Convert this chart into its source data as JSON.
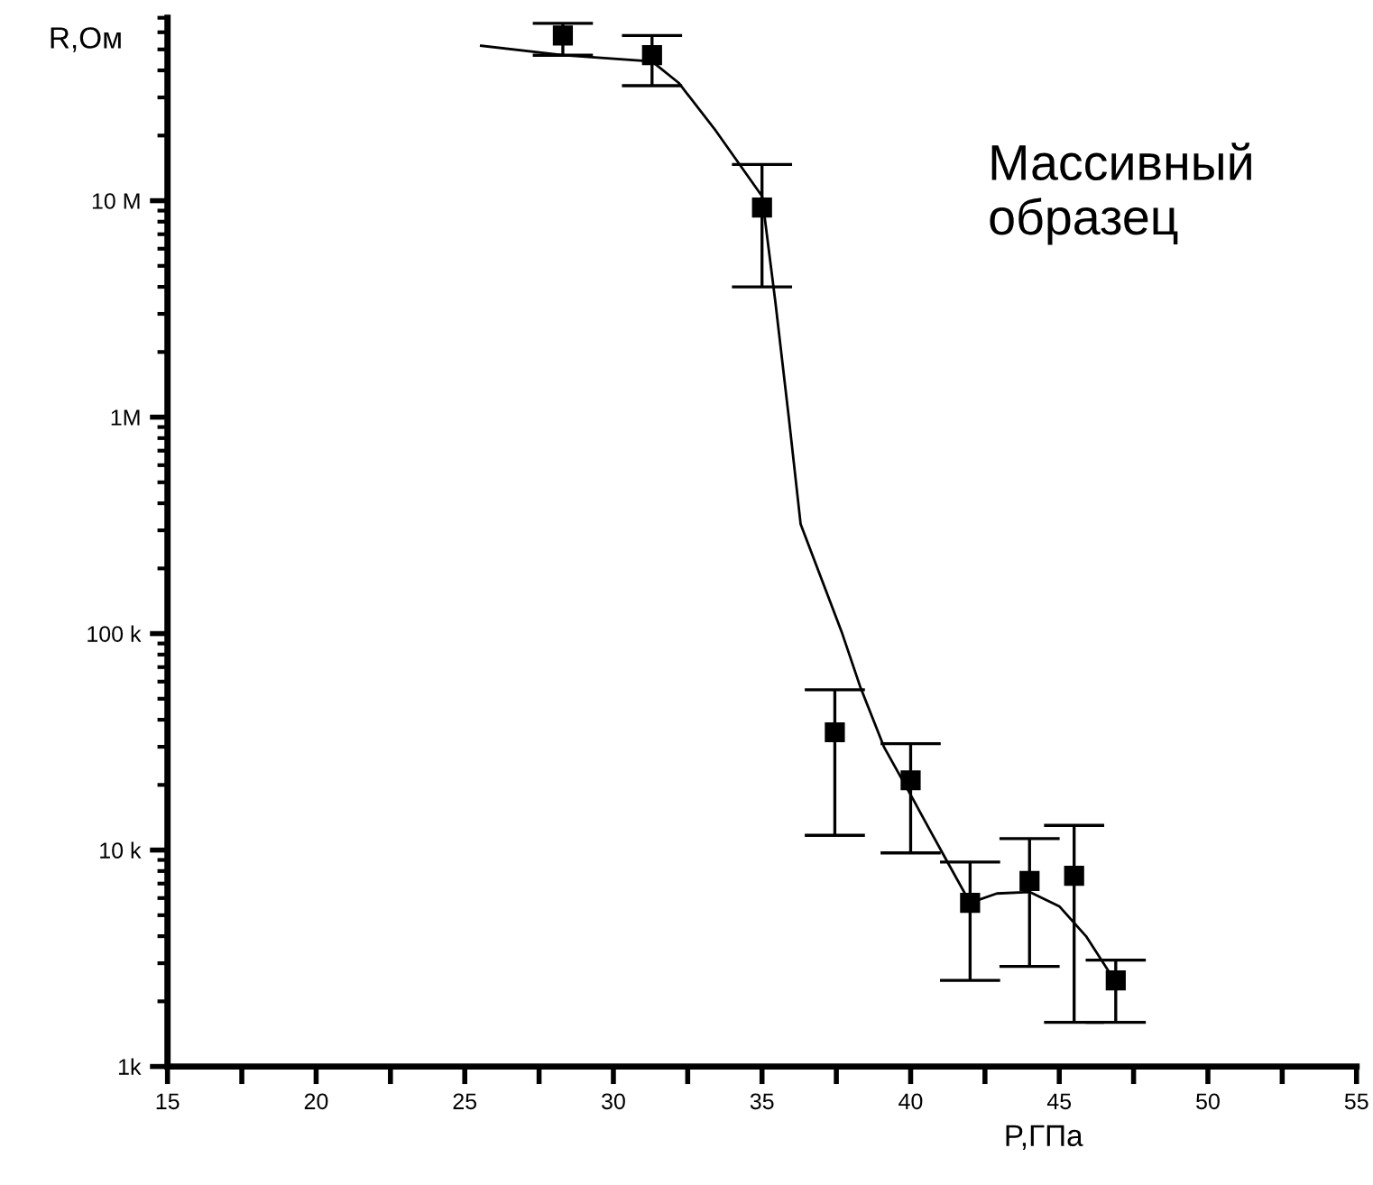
{
  "chart_data": {
    "type": "scatter",
    "xlabel": "P,ГПа",
    "ylabel": "R,Ом",
    "annotations": [
      "Массивный\nобразец"
    ],
    "log": "y",
    "xlim": [
      15,
      55
    ],
    "xticks": [
      15,
      {
        "value": 17.5,
        "label": null
      },
      20,
      {
        "value": 22.5,
        "label": null
      },
      25,
      {
        "value": 27.5,
        "label": null
      },
      30,
      {
        "value": 32.5,
        "label": null
      },
      35,
      {
        "value": 37.5,
        "label": null
      },
      40,
      {
        "value": 42.5,
        "label": null
      },
      45,
      {
        "value": 47.5,
        "label": null
      },
      50,
      {
        "value": 52.5,
        "label": null
      },
      55
    ],
    "ylim": [
      1000,
      70000000
    ],
    "yticks": [
      {
        "value": 1000,
        "label": "1k"
      },
      {
        "value": 10000,
        "label": "10 k"
      },
      {
        "value": 100000,
        "label": "100 k"
      },
      {
        "value": 1000000,
        "label": "1M"
      },
      {
        "value": 10000000,
        "label": "10 M"
      }
    ],
    "grid": false,
    "legend": false,
    "series": [
      {
        "color": "#000000",
        "marker": "square",
        "x": [
          28.3,
          31.3,
          35.0,
          37.45,
          40.0,
          42.0,
          44.0,
          45.5,
          46.9
        ],
        "values": [
          58000000,
          47000000,
          9300000,
          35000,
          21000,
          5700,
          7200,
          7600,
          2500
        ],
        "errors": [
          [
            47000000,
            66000000
          ],
          [
            34000000,
            58000000
          ],
          [
            4000000,
            14700000
          ],
          [
            11700,
            55000
          ],
          [
            9700,
            31000
          ],
          [
            2500,
            8800
          ],
          [
            2900,
            11300
          ],
          [
            1600,
            13000
          ],
          [
            1600,
            3100
          ]
        ]
      },
      {
        "type": "line",
        "color": "#000000",
        "marker": "none",
        "x": [
          25.55,
          28.3,
          31.3,
          32.2,
          33.45,
          35.0,
          35.45,
          35.9,
          36.3,
          37.7,
          38.3,
          39.1,
          40.0,
          40.7,
          41.3,
          42.0,
          42.9,
          44.0,
          45.0,
          45.9,
          46.7,
          46.9
        ],
        "values": [
          52000000,
          47000000,
          44000000,
          35000000,
          21000000,
          10500000,
          3400000,
          1000000,
          320000,
          100000,
          57000,
          30000,
          18000,
          12000,
          8500,
          5700,
          6300,
          6400,
          5500,
          4000,
          2700,
          2500
        ]
      }
    ]
  }
}
